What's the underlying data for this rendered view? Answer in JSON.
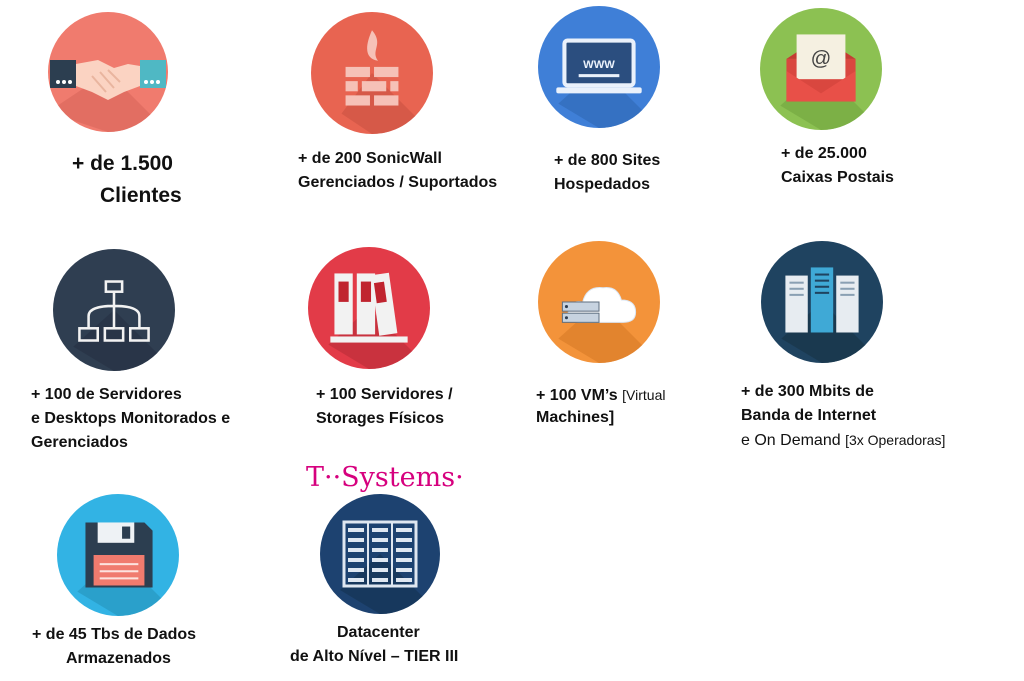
{
  "colors": {
    "coral": "#f07b6e",
    "red_orange": "#e86451",
    "blue": "#3f7fd7",
    "green": "#8cc152",
    "navy": "#2f3e51",
    "red": "#e23b48",
    "orange": "#f3933a",
    "teal_navy": "#1f4360",
    "cyan": "#32b3e4",
    "dark_blue": "#1d4270",
    "tsystems_magenta": "#d6007e"
  },
  "icons": [
    "handshake-icon",
    "firewall-icon",
    "website-icon",
    "mail-icon",
    "network-icon",
    "books-icon",
    "cloud-server-icon",
    "server-rack-icon",
    "floppy-disk-icon",
    "datacenter-icon"
  ],
  "items": {
    "clientes": {
      "line1": "+ de 1.500",
      "line2": "Clientes"
    },
    "sonicwall": {
      "line1": "+ de 200 SonicWall",
      "line2": "Gerenciados  / Suportados"
    },
    "sites": {
      "line1": "+ de 800 Sites",
      "line2": "Hospedados"
    },
    "caixas": {
      "line1": "+ de 25.000",
      "line2": "Caixas Postais"
    },
    "servidores": {
      "line1": "+  100 de Servidores",
      "line2": "e Desktops Monitorados  e",
      "line3": "Gerenciados"
    },
    "storages": {
      "line1": "+ 100 Servidores /",
      "line2": "Storages Físicos"
    },
    "vms": {
      "line1_bold": "+ 100 VM’s",
      "line1_small": "[Virtual",
      "line2": "Machines]"
    },
    "banda": {
      "line1": "+ de 300 Mbits de",
      "line2": "Banda de Internet",
      "line3_normal": "e On Demand",
      "line3_small": "[3x Operadoras]"
    },
    "dados": {
      "line1": "+ de 45 Tbs de Dados",
      "line2": "Armazenados"
    },
    "datacenter": {
      "line1": "Datacenter",
      "line2": "de Alto Nível – TIER III"
    }
  },
  "tsystems_logo": "T··Systems·"
}
